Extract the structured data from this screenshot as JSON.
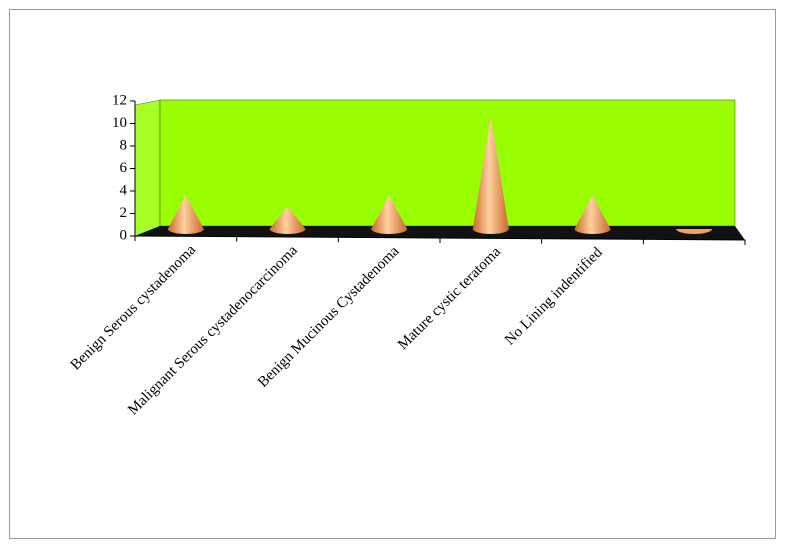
{
  "chart_data": {
    "type": "cone3d",
    "categories": [
      "Benign Serous cystadenoma",
      "Malignant Serous cystadenocarcinoma",
      "Benign Mucinous Cystadenoma",
      "Mature cystic teratoma",
      "No Lining indentified",
      null
    ],
    "values": [
      3,
      2,
      3,
      10,
      3,
      0
    ],
    "color": "#f0a060",
    "wall_color": "#99ff00",
    "ylim": [
      0,
      12
    ],
    "yticks": [
      0,
      2,
      4,
      6,
      8,
      10,
      12
    ]
  }
}
